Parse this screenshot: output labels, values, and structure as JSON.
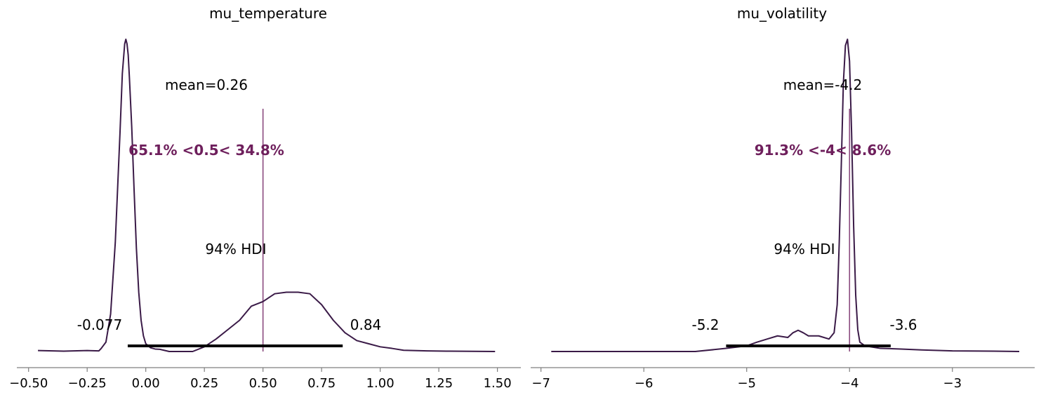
{
  "colors": {
    "kde_line": "#3a1a47",
    "ref_line": "#8a4a7e",
    "ref_text": "#6e1f5c",
    "hdi_bar": "#000000",
    "axis": "#7f7f7f",
    "text": "#000000"
  },
  "chart_data": [
    {
      "type": "line",
      "title": "mu_temperature",
      "xlim": [
        -0.55,
        1.6
      ],
      "ylim": [
        0,
        1
      ],
      "xticks": [
        -0.5,
        -0.25,
        0.0,
        0.25,
        0.5,
        0.75,
        1.0,
        1.25,
        1.5
      ],
      "xtick_labels": [
        "−0.50",
        "−0.25",
        "0.00",
        "0.25",
        "0.50",
        "0.75",
        "1.00",
        "1.25",
        "1.50"
      ],
      "grid": false,
      "mean_label": "mean=0.26",
      "hdi_label": "94% HDI",
      "hdi": [
        -0.077,
        0.84
      ],
      "hdi_low_label": "-0.077",
      "hdi_high_label": "0.84",
      "ref_value": 0.5,
      "ref_label": "65.1% <0.5< 34.8%",
      "series": [
        {
          "x": [
            -0.46,
            -0.35,
            -0.25,
            -0.2,
            -0.19,
            -0.17,
            -0.15,
            -0.13,
            -0.11,
            -0.1,
            -0.09,
            -0.085,
            -0.08,
            -0.075,
            -0.07,
            -0.06,
            -0.05,
            -0.04,
            -0.03,
            -0.02,
            -0.01,
            0.0,
            0.02,
            0.04,
            0.06,
            0.1,
            0.15,
            0.2,
            0.25,
            0.3,
            0.35,
            0.4,
            0.45,
            0.5,
            0.55,
            0.6,
            0.65,
            0.7,
            0.75,
            0.8,
            0.85,
            0.9,
            0.95,
            1.0,
            1.05,
            1.1,
            1.2,
            1.3,
            1.49
          ],
          "y": [
            0.003,
            0.001,
            0.003,
            0.002,
            0.01,
            0.03,
            0.12,
            0.35,
            0.7,
            0.89,
            0.985,
            1.0,
            0.985,
            0.95,
            0.88,
            0.72,
            0.52,
            0.33,
            0.19,
            0.1,
            0.05,
            0.025,
            0.012,
            0.008,
            0.007,
            0.0,
            0.0,
            0.0,
            0.015,
            0.04,
            0.07,
            0.1,
            0.145,
            0.16,
            0.185,
            0.19,
            0.19,
            0.185,
            0.15,
            0.1,
            0.06,
            0.035,
            0.025,
            0.015,
            0.01,
            0.004,
            0.002,
            0.001,
            0.0
          ]
        }
      ]
    },
    {
      "type": "line",
      "title": "mu_volatility",
      "xlim": [
        -7.1,
        -2.2
      ],
      "ylim": [
        0,
        1
      ],
      "xticks": [
        -7,
        -6,
        -5,
        -4,
        -3
      ],
      "xtick_labels": [
        "−7",
        "−6",
        "−5",
        "−4",
        "−3"
      ],
      "grid": false,
      "mean_label": "mean=-4.2",
      "hdi_label": "94% HDI",
      "hdi": [
        -5.2,
        -3.6
      ],
      "hdi_low_label": "-5.2",
      "hdi_high_label": "-3.6",
      "ref_value": -4.0,
      "ref_label": "91.3% <-4< 8.6%",
      "series": [
        {
          "x": [
            -6.9,
            -6.5,
            -6.0,
            -5.5,
            -5.2,
            -5.0,
            -4.9,
            -4.8,
            -4.7,
            -4.6,
            -4.55,
            -4.5,
            -4.45,
            -4.4,
            -4.3,
            -4.2,
            -4.15,
            -4.12,
            -4.1,
            -4.08,
            -4.06,
            -4.04,
            -4.02,
            -4.0,
            -3.98,
            -3.96,
            -3.94,
            -3.92,
            -3.9,
            -3.85,
            -3.7,
            -3.5,
            -3.3,
            -3.0,
            -2.6,
            -2.35
          ],
          "y": [
            0.0,
            0.0,
            0.0,
            0.0,
            0.01,
            0.018,
            0.03,
            0.04,
            0.05,
            0.045,
            0.06,
            0.068,
            0.06,
            0.05,
            0.05,
            0.04,
            0.06,
            0.15,
            0.35,
            0.6,
            0.86,
            0.98,
            1.0,
            0.93,
            0.7,
            0.4,
            0.18,
            0.07,
            0.03,
            0.018,
            0.01,
            0.008,
            0.005,
            0.002,
            0.001,
            0.0
          ]
        }
      ]
    }
  ]
}
